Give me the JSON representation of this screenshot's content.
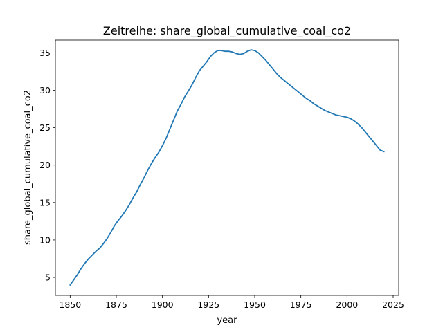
{
  "chart_data": {
    "type": "line",
    "title": "Zeitreihe: share_global_cumulative_coal_co2",
    "xlabel": "year",
    "ylabel": "share_global_cumulative_coal_co2",
    "xlim": [
      1842,
      2028
    ],
    "ylim": [
      2.6,
      36.7
    ],
    "xticks": [
      1850,
      1875,
      1900,
      1925,
      1950,
      1975,
      2000,
      2025
    ],
    "yticks": [
      5,
      10,
      15,
      20,
      25,
      30,
      35
    ],
    "grid": false,
    "legend": "none",
    "line_color": "#1f77b4",
    "series": [
      {
        "x": [
          1850,
          1852,
          1854,
          1856,
          1858,
          1860,
          1862,
          1864,
          1866,
          1868,
          1870,
          1872,
          1874,
          1876,
          1878,
          1880,
          1882,
          1884,
          1886,
          1888,
          1890,
          1892,
          1894,
          1896,
          1898,
          1900,
          1902,
          1904,
          1906,
          1908,
          1910,
          1912,
          1914,
          1916,
          1918,
          1920,
          1922,
          1924,
          1926,
          1928,
          1930,
          1932,
          1934,
          1936,
          1938,
          1940,
          1942,
          1944,
          1946,
          1948,
          1950,
          1952,
          1954,
          1956,
          1958,
          1960,
          1962,
          1964,
          1966,
          1968,
          1970,
          1972,
          1974,
          1976,
          1978,
          1980,
          1982,
          1984,
          1986,
          1988,
          1990,
          1992,
          1994,
          1996,
          1998,
          2000,
          2002,
          2004,
          2006,
          2008,
          2010,
          2012,
          2014,
          2016,
          2018,
          2020
        ],
        "y": [
          4.0,
          4.7,
          5.4,
          6.2,
          6.9,
          7.5,
          8.0,
          8.5,
          8.9,
          9.5,
          10.2,
          11.0,
          11.9,
          12.6,
          13.2,
          13.9,
          14.7,
          15.6,
          16.4,
          17.4,
          18.3,
          19.3,
          20.2,
          21.0,
          21.7,
          22.6,
          23.6,
          24.8,
          26.0,
          27.2,
          28.1,
          29.1,
          29.9,
          30.7,
          31.7,
          32.6,
          33.2,
          33.8,
          34.5,
          35.0,
          35.3,
          35.3,
          35.2,
          35.2,
          35.1,
          34.9,
          34.8,
          34.9,
          35.2,
          35.4,
          35.3,
          35.0,
          34.5,
          34.0,
          33.4,
          32.8,
          32.2,
          31.7,
          31.3,
          30.9,
          30.5,
          30.1,
          29.7,
          29.3,
          28.9,
          28.6,
          28.2,
          27.9,
          27.6,
          27.3,
          27.1,
          26.9,
          26.7,
          26.6,
          26.5,
          26.4,
          26.2,
          25.9,
          25.5,
          25.0,
          24.4,
          23.8,
          23.2,
          22.6,
          22.0,
          21.8
        ]
      }
    ]
  }
}
